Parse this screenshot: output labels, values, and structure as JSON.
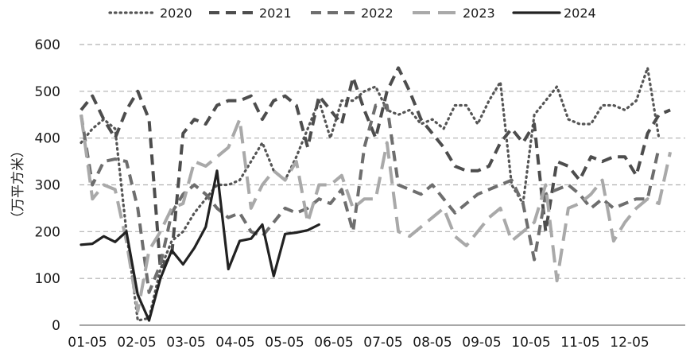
{
  "chart_data": {
    "type": "line",
    "ylabel": "（万平方米）",
    "ylim": [
      0,
      600
    ],
    "yticks": [
      0,
      100,
      200,
      300,
      400,
      500,
      600
    ],
    "x_tick_labels": [
      "01-05",
      "02-05",
      "03-05",
      "04-05",
      "05-05",
      "06-05",
      "07-05",
      "08-05",
      "09-05",
      "10-05",
      "11-05",
      "12-05"
    ],
    "grid": "horizontal dashed",
    "legend_position": "top",
    "series": [
      {
        "name": "2020",
        "style": "dotted",
        "color": "#555555",
        "values": [
          390,
          420,
          440,
          420,
          200,
          10,
          15,
          120,
          180,
          200,
          240,
          270,
          300,
          300,
          310,
          350,
          390,
          330,
          310,
          360,
          420,
          480,
          400,
          480,
          480,
          500,
          510,
          460,
          450,
          460,
          430,
          440,
          420,
          470,
          470,
          430,
          480,
          520,
          300,
          260,
          450,
          480,
          510,
          440,
          430,
          430,
          470,
          470,
          460,
          480,
          550,
          400
        ]
      },
      {
        "name": "2021",
        "style": "dashed",
        "color": "#4d4d4d",
        "values": [
          460,
          490,
          440,
          400,
          460,
          500,
          440,
          120,
          150,
          410,
          440,
          430,
          470,
          480,
          480,
          490,
          440,
          480,
          490,
          470,
          380,
          490,
          460,
          430,
          530,
          460,
          400,
          500,
          550,
          500,
          440,
          410,
          380,
          340,
          330,
          330,
          340,
          390,
          420,
          390,
          430,
          200,
          350,
          340,
          310,
          360,
          350,
          360,
          360,
          320,
          410,
          450,
          460
        ]
      },
      {
        "name": "2022",
        "style": "dashed",
        "color": "#6e6e6e",
        "values": [
          450,
          300,
          350,
          355,
          350,
          250,
          70,
          130,
          240,
          280,
          300,
          280,
          250,
          230,
          240,
          200,
          190,
          220,
          250,
          240,
          250,
          270,
          260,
          290,
          200,
          380,
          470,
          470,
          300,
          290,
          280,
          300,
          270,
          240,
          260,
          280,
          290,
          300,
          310,
          260,
          140,
          280,
          290,
          300,
          280,
          250,
          270,
          250,
          260,
          270,
          270,
          380
        ]
      },
      {
        "name": "2023",
        "style": "long-dashed",
        "color": "#a9a9a9",
        "values": [
          450,
          270,
          300,
          290,
          180,
          30,
          160,
          200,
          250,
          260,
          350,
          340,
          360,
          380,
          440,
          250,
          300,
          330,
          310,
          350,
          220,
          300,
          300,
          320,
          250,
          270,
          270,
          390,
          200,
          190,
          210,
          230,
          250,
          190,
          170,
          200,
          230,
          250,
          180,
          200,
          220,
          300,
          95,
          250,
          260,
          280,
          310,
          180,
          220,
          250,
          270,
          260,
          370
        ]
      },
      {
        "name": "2024",
        "style": "solid",
        "color": "#222222",
        "values": [
          172,
          174,
          190,
          178,
          200,
          65,
          10,
          100,
          160,
          130,
          165,
          210,
          330,
          120,
          180,
          185,
          215,
          105,
          195,
          198,
          203,
          215
        ]
      }
    ]
  }
}
